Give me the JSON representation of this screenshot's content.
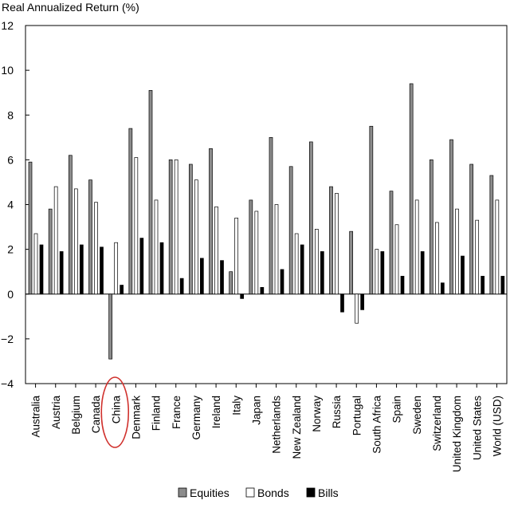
{
  "chart_data": {
    "type": "bar",
    "ylabel": "Real Annualized Return (%)",
    "ylim": [
      -4,
      12
    ],
    "yticks": [
      "12",
      "10",
      "8",
      "6",
      "4",
      "2",
      "0",
      "−2",
      "−4"
    ],
    "yticks_values": [
      12,
      10,
      8,
      6,
      4,
      2,
      0,
      -2,
      -4
    ],
    "grid": false,
    "legend_position": "bottom",
    "categories": [
      "Australia",
      "Austria",
      "Belgium",
      "Canada",
      "China",
      "Denmark",
      "Finland",
      "France",
      "Germany",
      "Ireland",
      "Italy",
      "Japan",
      "Netherlands",
      "New Zealand",
      "Norway",
      "Russia",
      "Portugal",
      "South Africa",
      "Spain",
      "Sweden",
      "Switzerland",
      "United Kingdom",
      "United States",
      "World (USD)"
    ],
    "highlighted_category": "China",
    "highlight_color": "#d0312d",
    "series": [
      {
        "name": "Equities",
        "color": "#8c8c8c",
        "values": [
          5.9,
          3.8,
          6.2,
          5.1,
          -2.9,
          7.4,
          9.1,
          6.0,
          5.8,
          6.5,
          1.0,
          4.2,
          7.0,
          5.7,
          6.8,
          4.8,
          2.8,
          7.5,
          4.6,
          9.4,
          6.0,
          6.9,
          5.8,
          5.3
        ]
      },
      {
        "name": "Bonds",
        "color": "#ffffff",
        "values": [
          2.7,
          4.8,
          4.7,
          4.1,
          2.3,
          6.1,
          4.2,
          6.0,
          5.1,
          3.9,
          3.4,
          3.7,
          4.0,
          2.7,
          2.9,
          4.5,
          -1.3,
          2.0,
          3.1,
          4.2,
          3.2,
          3.8,
          3.3,
          4.2
        ]
      },
      {
        "name": "Bills",
        "color": "#000000",
        "values": [
          2.2,
          1.9,
          2.2,
          2.1,
          0.4,
          2.5,
          2.3,
          0.7,
          1.6,
          1.5,
          -0.2,
          0.3,
          1.1,
          2.2,
          1.9,
          -0.8,
          -0.7,
          1.9,
          0.8,
          1.9,
          0.5,
          1.7,
          0.8,
          0.8
        ]
      }
    ]
  }
}
